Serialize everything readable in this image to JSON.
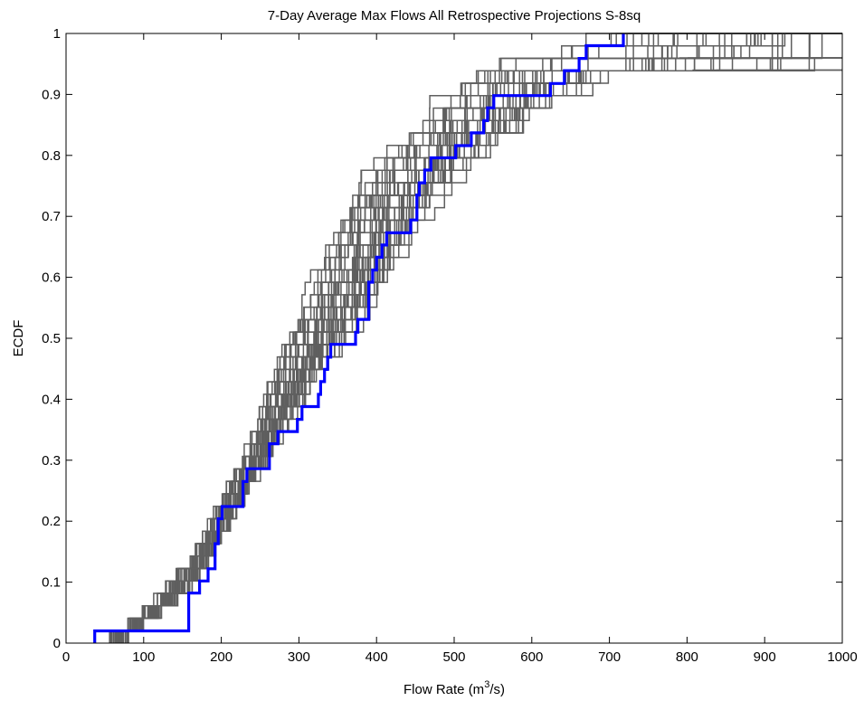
{
  "chart_data": {
    "type": "line",
    "title": "7-Day Average Max Flows All Retrospective Projections S-8sq",
    "xlabel": {
      "pre": "Flow Rate (m",
      "sup": "3",
      "post": "/s)"
    },
    "ylabel": "ECDF",
    "xlim": [
      0,
      1000
    ],
    "ylim": [
      0,
      1
    ],
    "xticks": [
      0,
      100,
      200,
      300,
      400,
      500,
      600,
      700,
      800,
      900,
      1000
    ],
    "yticks": [
      0,
      0.1,
      0.2,
      0.3,
      0.4,
      0.5,
      0.6,
      0.7,
      0.8,
      0.9,
      1
    ],
    "xtick_labels": [
      "0",
      "100",
      "200",
      "300",
      "400",
      "500",
      "600",
      "700",
      "800",
      "900",
      "1000"
    ],
    "ytick_labels": [
      "0",
      "0.1",
      "0.2",
      "0.3",
      "0.4",
      "0.5",
      "0.6",
      "0.7",
      "0.8",
      "0.9",
      "1"
    ],
    "grid": false,
    "colors": {
      "projections": "#5f5f5f",
      "observed": "#0000ff",
      "axes": "#000000"
    },
    "series": [
      {
        "role": "observed",
        "type": "step",
        "points": [
          [
            37,
            0
          ],
          [
            37,
            0.02
          ],
          [
            158,
            0.02
          ],
          [
            158,
            0.082
          ],
          [
            172,
            0.082
          ],
          [
            172,
            0.102
          ],
          [
            183,
            0.102
          ],
          [
            183,
            0.122
          ],
          [
            192,
            0.122
          ],
          [
            192,
            0.163
          ],
          [
            196,
            0.163
          ],
          [
            196,
            0.204
          ],
          [
            201,
            0.204
          ],
          [
            201,
            0.224
          ],
          [
            228,
            0.224
          ],
          [
            228,
            0.265
          ],
          [
            233,
            0.265
          ],
          [
            233,
            0.286
          ],
          [
            262,
            0.286
          ],
          [
            262,
            0.327
          ],
          [
            273,
            0.327
          ],
          [
            273,
            0.347
          ],
          [
            298,
            0.347
          ],
          [
            298,
            0.367
          ],
          [
            304,
            0.367
          ],
          [
            304,
            0.388
          ],
          [
            325,
            0.388
          ],
          [
            325,
            0.408
          ],
          [
            328,
            0.408
          ],
          [
            328,
            0.429
          ],
          [
            333,
            0.429
          ],
          [
            333,
            0.449
          ],
          [
            337,
            0.449
          ],
          [
            337,
            0.469
          ],
          [
            341,
            0.469
          ],
          [
            341,
            0.49
          ],
          [
            373,
            0.49
          ],
          [
            373,
            0.51
          ],
          [
            376,
            0.51
          ],
          [
            376,
            0.531
          ],
          [
            390,
            0.531
          ],
          [
            390,
            0.592
          ],
          [
            395,
            0.592
          ],
          [
            395,
            0.612
          ],
          [
            400,
            0.612
          ],
          [
            400,
            0.633
          ],
          [
            407,
            0.633
          ],
          [
            407,
            0.653
          ],
          [
            413,
            0.653
          ],
          [
            413,
            0.673
          ],
          [
            444,
            0.673
          ],
          [
            444,
            0.694
          ],
          [
            452,
            0.694
          ],
          [
            452,
            0.735
          ],
          [
            455,
            0.735
          ],
          [
            455,
            0.755
          ],
          [
            462,
            0.755
          ],
          [
            462,
            0.776
          ],
          [
            470,
            0.776
          ],
          [
            470,
            0.796
          ],
          [
            502,
            0.796
          ],
          [
            502,
            0.816
          ],
          [
            522,
            0.816
          ],
          [
            522,
            0.837
          ],
          [
            538,
            0.837
          ],
          [
            538,
            0.857
          ],
          [
            543,
            0.857
          ],
          [
            543,
            0.878
          ],
          [
            551,
            0.878
          ],
          [
            551,
            0.898
          ],
          [
            624,
            0.898
          ],
          [
            624,
            0.918
          ],
          [
            642,
            0.918
          ],
          [
            642,
            0.939
          ],
          [
            661,
            0.939
          ],
          [
            661,
            0.959
          ],
          [
            670,
            0.959
          ],
          [
            670,
            0.98
          ],
          [
            718,
            0.98
          ],
          [
            718,
            1.0
          ]
        ]
      }
    ],
    "projection_ensemble": {
      "role": "projections",
      "type": "step",
      "count": 40,
      "rendering": "band",
      "lower_envelope": [
        [
          60,
          0
        ],
        [
          165,
          0.1
        ],
        [
          235,
          0.25
        ],
        [
          330,
          0.45
        ],
        [
          400,
          0.55
        ],
        [
          470,
          0.7
        ],
        [
          535,
          0.8
        ],
        [
          620,
          0.88
        ],
        [
          720,
          0.94
        ],
        [
          1000,
          0.94
        ]
      ],
      "upper_envelope": [
        [
          30,
          0
        ],
        [
          90,
          0.05
        ],
        [
          160,
          0.15
        ],
        [
          230,
          0.33
        ],
        [
          300,
          0.6
        ],
        [
          345,
          0.745
        ],
        [
          440,
          0.85
        ],
        [
          495,
          0.955
        ],
        [
          570,
          0.975
        ],
        [
          650,
          1.0
        ],
        [
          1000,
          1.0
        ]
      ]
    }
  }
}
